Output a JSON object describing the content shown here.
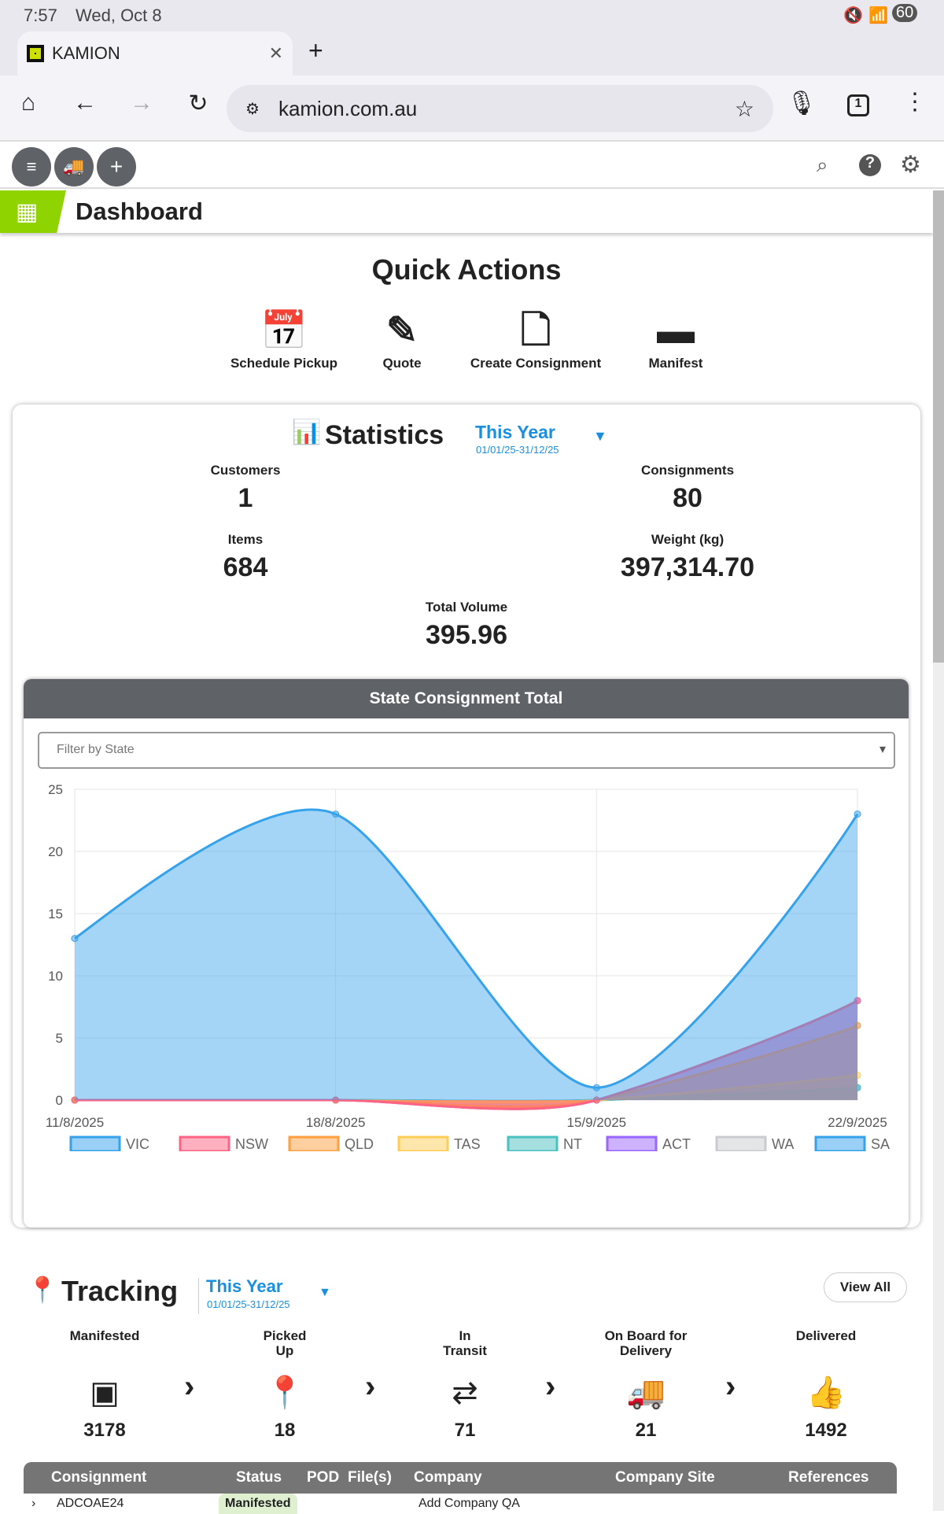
{
  "status": {
    "time": "7:57",
    "date": "Wed, Oct 8",
    "battery": "60"
  },
  "browser": {
    "tab_title": "KAMION",
    "url": "kamion.com.au",
    "tab_count": "1"
  },
  "page": {
    "title": "Dashboard"
  },
  "quick_actions": {
    "title": "Quick Actions",
    "items": [
      {
        "label": "Schedule Pickup"
      },
      {
        "label": "Quote"
      },
      {
        "label": "Create Consignment"
      },
      {
        "label": "Manifest"
      }
    ]
  },
  "statistics": {
    "title": "Statistics",
    "period": "This Year",
    "range": "01/01/25-31/12/25",
    "customers_label": "Customers",
    "customers": "1",
    "consignments_label": "Consignments",
    "consignments": "80",
    "items_label": "Items",
    "items": "684",
    "weight_label": "Weight (kg)",
    "weight": "397,314.70",
    "volume_label": "Total Volume",
    "volume": "395.96"
  },
  "state_chart": {
    "title": "State Consignment Total",
    "filter_placeholder": "Filter by State"
  },
  "chart_data": {
    "type": "area",
    "title": "State Consignment Total",
    "x": [
      "11/8/2025",
      "18/8/2025",
      "15/9/2025",
      "22/9/2025"
    ],
    "ylim": [
      0,
      25
    ],
    "yticks": [
      "0",
      "5",
      "10",
      "15",
      "20",
      "25"
    ],
    "grid": true,
    "legend": "bottom",
    "series": [
      {
        "name": "VIC",
        "color": "#36a2eb",
        "values": [
          13,
          23,
          1,
          23
        ]
      },
      {
        "name": "NSW",
        "color": "#ff6384",
        "values": [
          0,
          0,
          0,
          8
        ]
      },
      {
        "name": "QLD",
        "color": "#ff9f40",
        "values": [
          0,
          0,
          0,
          6
        ]
      },
      {
        "name": "TAS",
        "color": "#ffcd56",
        "values": [
          0,
          0,
          0,
          2
        ]
      },
      {
        "name": "NT",
        "color": "#4bc0c0",
        "values": [
          0,
          0,
          0,
          1
        ]
      },
      {
        "name": "ACT",
        "color": "#9966ff",
        "values": [
          0,
          0,
          0,
          8
        ]
      },
      {
        "name": "WA",
        "color": "#c9cbcf",
        "values": [
          0,
          0,
          0,
          6
        ]
      },
      {
        "name": "SA",
        "color": "#36a2eb",
        "values": [
          0,
          0,
          0,
          1
        ]
      }
    ]
  },
  "tracking": {
    "title": "Tracking",
    "period": "This Year",
    "range": "01/01/25-31/12/25",
    "view_all": "View All",
    "stages": [
      {
        "label": "Manifested",
        "value": "3178"
      },
      {
        "label": "Picked Up",
        "value": "18"
      },
      {
        "label": "In Transit",
        "value": "71"
      },
      {
        "label": "On Board for Delivery",
        "value": "21"
      },
      {
        "label": "Delivered",
        "value": "1492"
      }
    ]
  },
  "table": {
    "headers": [
      "Consignment",
      "Status",
      "POD",
      "File(s)",
      "Company",
      "Company Site",
      "References"
    ],
    "row": {
      "consignment": "ADCOAE24",
      "status": "Manifested",
      "company": "Add Company QA"
    }
  }
}
